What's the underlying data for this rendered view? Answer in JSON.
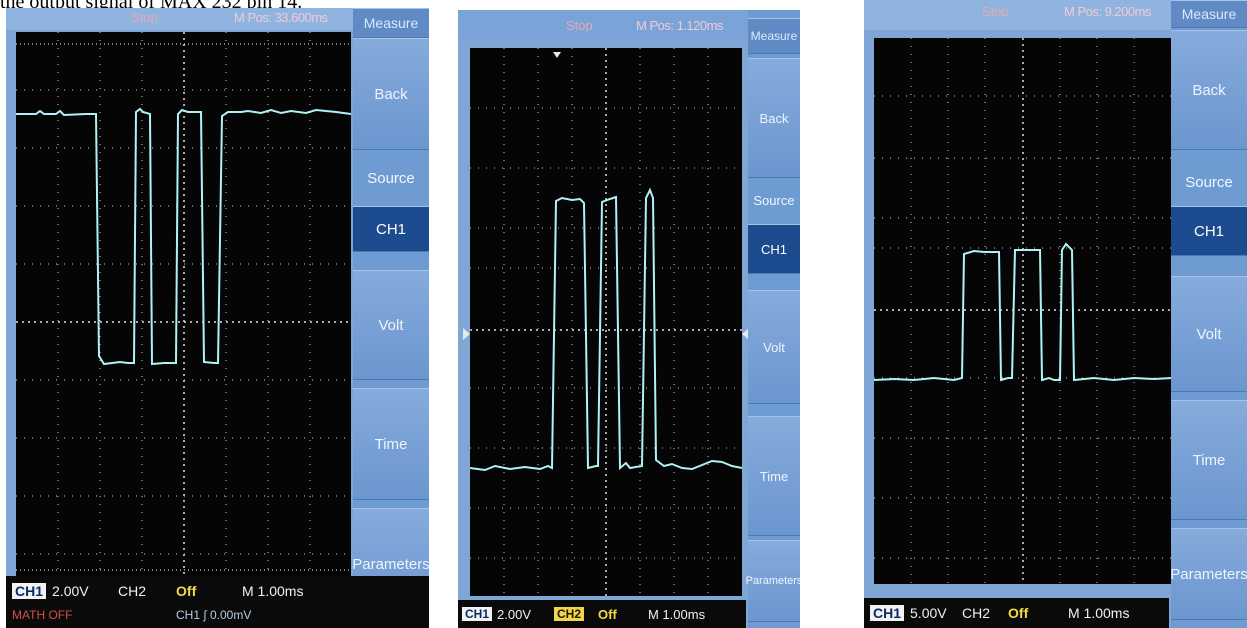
{
  "caption": "the output signal of MAX 232 pin 14.",
  "panels": [
    {
      "status": "Stop",
      "mpos": "M Pos: 33.600ms",
      "menu": {
        "title": "Measure",
        "back": "Back",
        "source": "Source",
        "ch": "CH1",
        "volt": "Volt",
        "time": "Time",
        "params": "Parameters"
      },
      "ch1_label": "CH1",
      "ch1_volt": "2.00V",
      "ch2_label": "CH2",
      "ch2_value": "Off",
      "timebase": "M 1.00ms",
      "bottom_row2_left": "MATH OFF",
      "bottom_row2_right": "CH1  ∫  0.00mV"
    },
    {
      "status": "Stop",
      "mpos": "M Pos: 1.120ms",
      "menu": {
        "title": "Measure",
        "back": "Back",
        "source": "Source",
        "ch": "CH1",
        "volt": "Volt",
        "time": "Time",
        "params": "Parameters"
      },
      "ch1_label": "CH1",
      "ch1_volt": "2.00V",
      "ch2_label": "CH2",
      "ch2_value": "Off",
      "timebase": "M 1.00ms"
    },
    {
      "status": "Stop",
      "mpos": "M Pos: 9.200ms",
      "menu": {
        "title": "Measure",
        "back": "Back",
        "source": "Source",
        "ch": "CH1",
        "volt": "Volt",
        "time": "Time",
        "params": "Parameters"
      },
      "ch1_label": "CH1",
      "ch1_volt": "5.00V",
      "ch2_label": "CH2",
      "ch2_value": "Off",
      "timebase": "M 1.00ms"
    }
  ],
  "colors": {
    "trace": "#aef2f6",
    "grid": "#d8d8d8",
    "screen": "#050505",
    "menu": "#6f9bd3"
  }
}
